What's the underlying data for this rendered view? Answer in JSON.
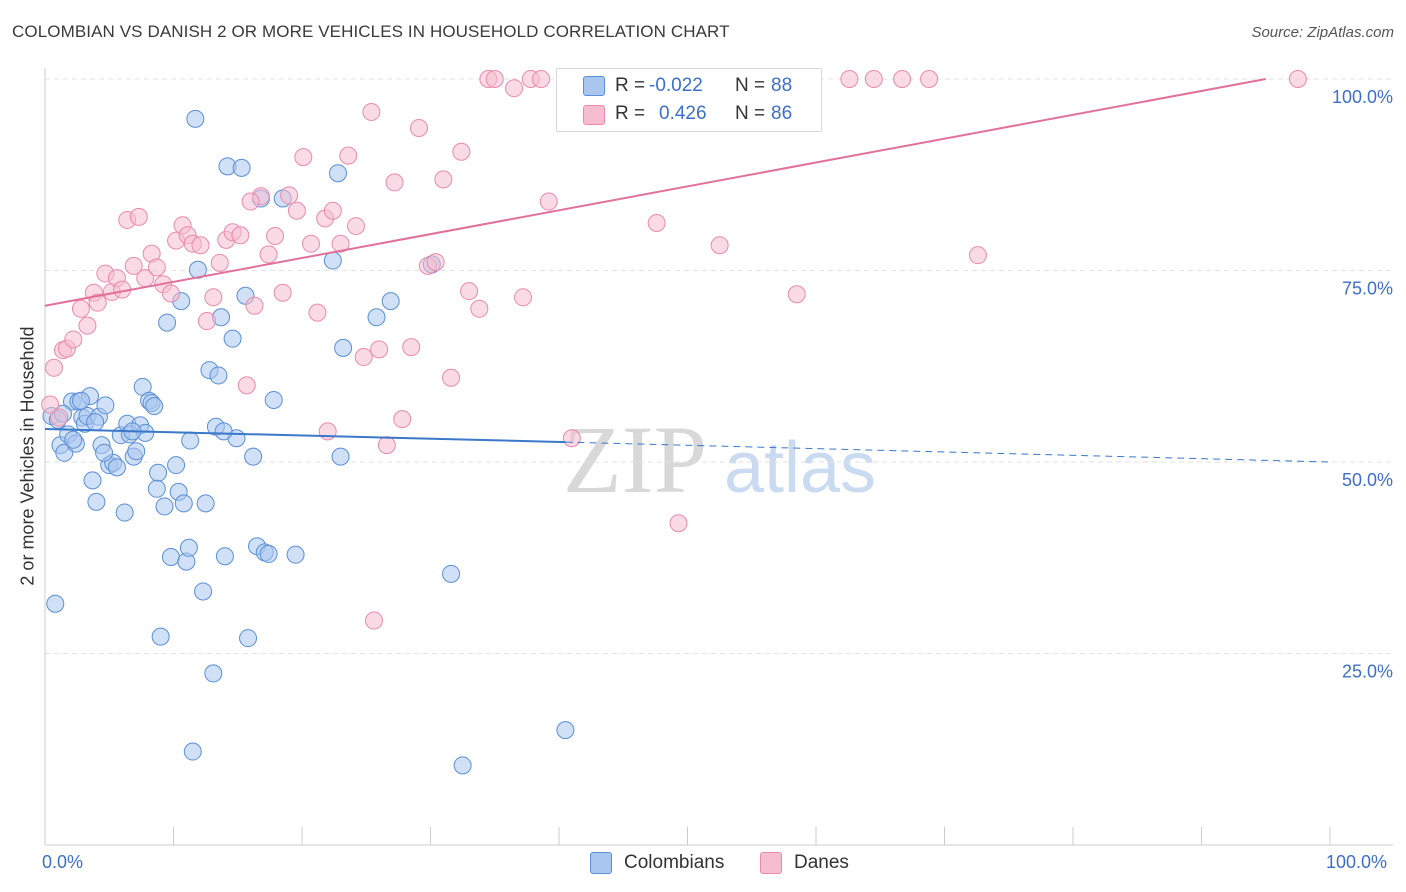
{
  "title": "COLOMBIAN VS DANISH 2 OR MORE VEHICLES IN HOUSEHOLD CORRELATION CHART",
  "source": "Source: ZipAtlas.com",
  "legend_top": [
    {
      "series": "Colombians",
      "r_label": "R =",
      "r_value": "-0.022",
      "n_label": "N =",
      "n_value": "88"
    },
    {
      "series": "Danes",
      "r_label": "R =",
      "r_value": "0.426",
      "n_label": "N =",
      "n_value": "86"
    }
  ],
  "watermark": {
    "zip": "ZIP",
    "atlas": "atlas"
  },
  "colors": {
    "colombians_fill": "#a9c6ef",
    "colombians_stroke": "#5b8fd6",
    "colombians_line": "#3b78c9",
    "danes_fill": "#f6bdd0",
    "danes_stroke": "#e98aab",
    "danes_line": "#e2719a",
    "axis_text": "#3d6fc7",
    "grid": "#e2e2e2"
  },
  "chart_data": {
    "type": "scatter",
    "title": "COLOMBIAN VS DANISH 2 OR MORE VEHICLES IN HOUSEHOLD CORRELATION CHART",
    "xlabel": "",
    "ylabel": "2 or more Vehicles in Household",
    "xlim": [
      0,
      100
    ],
    "ylim": [
      0,
      100
    ],
    "x_tick_labels": [
      "0.0%",
      "100.0%"
    ],
    "y_tick_labels": [
      "25.0%",
      "50.0%",
      "75.0%",
      "100.0%"
    ],
    "y_ticks": [
      25,
      50,
      75,
      100
    ],
    "grid": true,
    "legend_position": "top-center",
    "series": [
      {
        "name": "Colombians",
        "r": -0.022,
        "n": 88,
        "trend": {
          "x0": 0,
          "y0": 54.3,
          "x1": 40.5,
          "y1": 52.6,
          "dashed_to_x": 100,
          "dashed_to_y": 50.0
        },
        "points": [
          [
            0.5,
            56.0
          ],
          [
            1.0,
            55.5
          ],
          [
            1.2,
            52.2
          ],
          [
            1.5,
            51.2
          ],
          [
            1.8,
            53.6
          ],
          [
            2.1,
            57.9
          ],
          [
            2.4,
            52.4
          ],
          [
            2.6,
            57.9
          ],
          [
            2.9,
            55.8
          ],
          [
            3.1,
            55.0
          ],
          [
            3.3,
            56.0
          ],
          [
            3.5,
            58.6
          ],
          [
            3.7,
            47.6
          ],
          [
            4.0,
            44.8
          ],
          [
            4.2,
            55.9
          ],
          [
            4.4,
            52.2
          ],
          [
            4.7,
            57.4
          ],
          [
            5.0,
            49.6
          ],
          [
            5.3,
            49.9
          ],
          [
            5.6,
            49.3
          ],
          [
            5.9,
            53.5
          ],
          [
            6.2,
            43.4
          ],
          [
            6.4,
            55.0
          ],
          [
            6.6,
            53.6
          ],
          [
            6.9,
            50.7
          ],
          [
            7.1,
            51.4
          ],
          [
            7.4,
            54.8
          ],
          [
            7.6,
            59.8
          ],
          [
            7.8,
            53.8
          ],
          [
            8.1,
            58.0
          ],
          [
            8.3,
            57.7
          ],
          [
            8.5,
            57.3
          ],
          [
            8.8,
            48.6
          ],
          [
            9.0,
            27.2
          ],
          [
            9.3,
            44.2
          ],
          [
            9.5,
            68.2
          ],
          [
            9.8,
            37.6
          ],
          [
            10.2,
            49.6
          ],
          [
            10.4,
            46.1
          ],
          [
            10.6,
            71.0
          ],
          [
            10.8,
            44.6
          ],
          [
            11.0,
            37.0
          ],
          [
            11.2,
            38.8
          ],
          [
            11.5,
            12.2
          ],
          [
            11.7,
            94.8
          ],
          [
            11.9,
            75.1
          ],
          [
            12.3,
            33.1
          ],
          [
            12.5,
            44.6
          ],
          [
            12.8,
            62.0
          ],
          [
            13.1,
            22.4
          ],
          [
            13.3,
            54.6
          ],
          [
            13.5,
            61.3
          ],
          [
            13.7,
            68.9
          ],
          [
            14.0,
            37.7
          ],
          [
            14.2,
            88.6
          ],
          [
            14.6,
            66.1
          ],
          [
            14.9,
            53.1
          ],
          [
            15.3,
            88.4
          ],
          [
            15.6,
            71.7
          ],
          [
            15.8,
            27.0
          ],
          [
            16.2,
            50.7
          ],
          [
            16.5,
            39.0
          ],
          [
            16.8,
            84.4
          ],
          [
            17.1,
            38.2
          ],
          [
            17.4,
            38.0
          ],
          [
            17.8,
            58.1
          ],
          [
            18.5,
            84.4
          ],
          [
            19.5,
            37.9
          ],
          [
            22.4,
            76.3
          ],
          [
            22.8,
            87.7
          ],
          [
            23.0,
            50.7
          ],
          [
            23.2,
            64.9
          ],
          [
            25.8,
            68.9
          ],
          [
            26.9,
            71.0
          ],
          [
            30.1,
            75.8
          ],
          [
            31.6,
            35.4
          ],
          [
            32.5,
            10.4
          ],
          [
            40.5,
            15.0
          ],
          [
            0.8,
            31.5
          ],
          [
            1.4,
            56.3
          ],
          [
            2.8,
            58.0
          ],
          [
            4.6,
            51.2
          ],
          [
            6.8,
            54.0
          ],
          [
            8.7,
            46.5
          ],
          [
            11.3,
            52.8
          ],
          [
            13.9,
            54.0
          ],
          [
            3.9,
            55.2
          ],
          [
            2.2,
            52.9
          ]
        ]
      },
      {
        "name": "Danes",
        "r": 0.426,
        "n": 86,
        "trend": {
          "x0": 0,
          "y0": 70.4,
          "x1": 95.0,
          "y1": 100.0
        },
        "points": [
          [
            0.4,
            57.5
          ],
          [
            0.7,
            62.3
          ],
          [
            1.1,
            55.8
          ],
          [
            1.4,
            64.6
          ],
          [
            1.7,
            64.8
          ],
          [
            2.2,
            66.0
          ],
          [
            2.8,
            70.0
          ],
          [
            3.3,
            67.8
          ],
          [
            3.8,
            72.1
          ],
          [
            4.1,
            70.8
          ],
          [
            4.7,
            74.6
          ],
          [
            5.2,
            72.2
          ],
          [
            5.6,
            74.0
          ],
          [
            6.0,
            72.5
          ],
          [
            6.4,
            81.6
          ],
          [
            6.9,
            75.6
          ],
          [
            7.3,
            82.0
          ],
          [
            7.8,
            74.0
          ],
          [
            8.3,
            77.2
          ],
          [
            8.7,
            75.4
          ],
          [
            9.2,
            73.2
          ],
          [
            9.8,
            72.0
          ],
          [
            10.2,
            78.9
          ],
          [
            10.7,
            80.9
          ],
          [
            11.1,
            79.6
          ],
          [
            11.5,
            78.5
          ],
          [
            12.1,
            78.3
          ],
          [
            12.6,
            68.4
          ],
          [
            13.1,
            71.5
          ],
          [
            13.6,
            76.0
          ],
          [
            14.1,
            79.0
          ],
          [
            14.6,
            80.0
          ],
          [
            15.2,
            79.6
          ],
          [
            15.7,
            60.0
          ],
          [
            16.3,
            70.4
          ],
          [
            16.8,
            84.7
          ],
          [
            17.4,
            77.1
          ],
          [
            17.9,
            79.5
          ],
          [
            18.5,
            72.1
          ],
          [
            19.0,
            84.8
          ],
          [
            19.6,
            82.8
          ],
          [
            20.1,
            89.8
          ],
          [
            20.7,
            78.5
          ],
          [
            21.2,
            69.5
          ],
          [
            21.8,
            81.8
          ],
          [
            22.4,
            82.8
          ],
          [
            23.0,
            78.5
          ],
          [
            23.6,
            90.0
          ],
          [
            24.2,
            80.8
          ],
          [
            24.8,
            63.7
          ],
          [
            25.4,
            95.7
          ],
          [
            26.0,
            64.7
          ],
          [
            26.6,
            52.2
          ],
          [
            27.2,
            86.5
          ],
          [
            27.8,
            55.6
          ],
          [
            28.5,
            65.0
          ],
          [
            29.1,
            93.6
          ],
          [
            29.8,
            75.6
          ],
          [
            30.4,
            76.1
          ],
          [
            31.0,
            86.9
          ],
          [
            31.6,
            61.0
          ],
          [
            32.4,
            90.5
          ],
          [
            33.0,
            72.3
          ],
          [
            33.8,
            70.0
          ],
          [
            34.5,
            100.0
          ],
          [
            35.0,
            100.0
          ],
          [
            36.5,
            98.8
          ],
          [
            37.2,
            71.5
          ],
          [
            37.8,
            100.0
          ],
          [
            38.6,
            100.0
          ],
          [
            39.2,
            84.0
          ],
          [
            41.0,
            53.1
          ],
          [
            47.6,
            81.2
          ],
          [
            49.3,
            42.0
          ],
          [
            50.8,
            100.0
          ],
          [
            52.5,
            78.3
          ],
          [
            58.5,
            71.9
          ],
          [
            62.6,
            100.0
          ],
          [
            64.5,
            100.0
          ],
          [
            66.7,
            100.0
          ],
          [
            68.8,
            100.0
          ],
          [
            72.6,
            77.0
          ],
          [
            25.6,
            29.3
          ],
          [
            22.0,
            54.0
          ],
          [
            16.0,
            84.0
          ],
          [
            97.5,
            100.0
          ]
        ]
      }
    ]
  },
  "bottom_legend": [
    "Colombians",
    "Danes"
  ]
}
